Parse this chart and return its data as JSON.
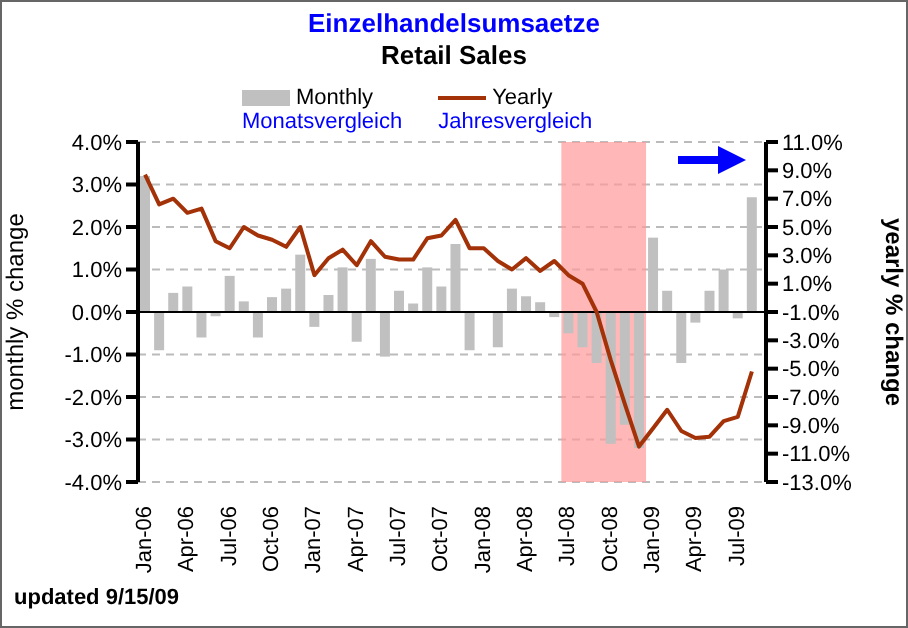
{
  "chart_data": {
    "type": "bar",
    "title": "Einzelhandelsumsaetze",
    "subtitle": "Retail Sales",
    "ylabel": "monthly % change",
    "y2label": "yearly % change",
    "annotations": [
      "Monatsvergleich",
      "Jahresvergleich",
      "updated 9/15/09"
    ],
    "categories": [
      "Jan-06",
      null,
      null,
      "Apr-06",
      null,
      null,
      "Jul-06",
      null,
      null,
      "Oct-06",
      null,
      null,
      "Jan-07",
      null,
      null,
      "Apr-07",
      null,
      null,
      "Jul-07",
      null,
      null,
      "Oct-07",
      null,
      null,
      "Jan-08",
      null,
      null,
      "Apr-08",
      null,
      null,
      "Jul-08",
      null,
      null,
      "Oct-08",
      null,
      null,
      "Jan-09",
      null,
      null,
      "Apr-09",
      null,
      null,
      "Jul-09",
      null
    ],
    "series": [
      {
        "name": "Monthly",
        "color": "#c0c0c0",
        "values": [
          3.2,
          -0.9,
          0.45,
          0.6,
          -0.6,
          -0.1,
          0.85,
          0.25,
          -0.6,
          0.35,
          0.55,
          1.35,
          -0.35,
          0.4,
          1.05,
          -0.7,
          1.25,
          -1.05,
          0.5,
          0.2,
          1.05,
          0.6,
          1.6,
          -0.9,
          0,
          -0.83,
          0.55,
          0.37,
          0.23,
          -0.12,
          -0.5,
          -0.83,
          -1.2,
          -3.1,
          -2.65,
          -3.2,
          1.75,
          0.5,
          -1.2,
          -0.25,
          0.5,
          1.0,
          -0.15,
          2.7
        ]
      },
      {
        "name": "Yearly",
        "type": "line",
        "axis": "y2",
        "color": "#a33208",
        "values": [
          8.7,
          6.6,
          7.0,
          6.0,
          6.3,
          4.0,
          3.5,
          5.0,
          4.4,
          4.1,
          3.6,
          5.0,
          1.6,
          2.8,
          3.4,
          2.3,
          4.0,
          2.9,
          2.7,
          2.7,
          4.2,
          4.4,
          5.5,
          3.5,
          3.5,
          2.6,
          2.0,
          2.8,
          1.9,
          2.6,
          1.6,
          1.0,
          -1.0,
          -4.4,
          -7.5,
          -10.5,
          -9.2,
          -7.9,
          -9.4,
          -9.9,
          -9.8,
          -8.7,
          -8.4,
          -5.2
        ]
      }
    ],
    "ylim": [
      -4,
      4
    ],
    "yticks": [
      {
        "value": 4,
        "label": "4.0%"
      },
      {
        "value": 3,
        "label": "3.0%"
      },
      {
        "value": 2,
        "label": "2.0%"
      },
      {
        "value": 1,
        "label": "1.0%"
      },
      {
        "value": 0,
        "label": "0.0%"
      },
      {
        "value": -1,
        "label": "-1.0%"
      },
      {
        "value": -2,
        "label": "-2.0%"
      },
      {
        "value": -3,
        "label": "-3.0%"
      },
      {
        "value": -4,
        "label": "-4.0%"
      }
    ],
    "y2lim": [
      -13,
      11
    ],
    "y2ticks": [
      {
        "value": 11,
        "label": "11.0%"
      },
      {
        "value": 9,
        "label": "9.0%"
      },
      {
        "value": 7,
        "label": "7.0%"
      },
      {
        "value": 5,
        "label": "5.0%"
      },
      {
        "value": 3,
        "label": "3.0%"
      },
      {
        "value": 1,
        "label": "1.0%"
      },
      {
        "value": -1,
        "label": "-1.0%"
      },
      {
        "value": -3,
        "label": "-3.0%"
      },
      {
        "value": -5,
        "label": "-5.0%"
      },
      {
        "value": -7,
        "label": "-7.0%"
      },
      {
        "value": -9,
        "label": "-9.0%"
      },
      {
        "value": -11,
        "label": "-11.0%"
      },
      {
        "value": -13,
        "label": "-13.0%"
      }
    ],
    "ref_lines": [
      {
        "axis": "y",
        "value": 0,
        "color": "#000000"
      }
    ],
    "bands": [
      {
        "axis": "x",
        "from": "Jul-08",
        "to": "Jan-09",
        "color": "#ff9999"
      }
    ],
    "grid": "y",
    "legend": "top",
    "marker": "none",
    "line_style": "solid"
  }
}
